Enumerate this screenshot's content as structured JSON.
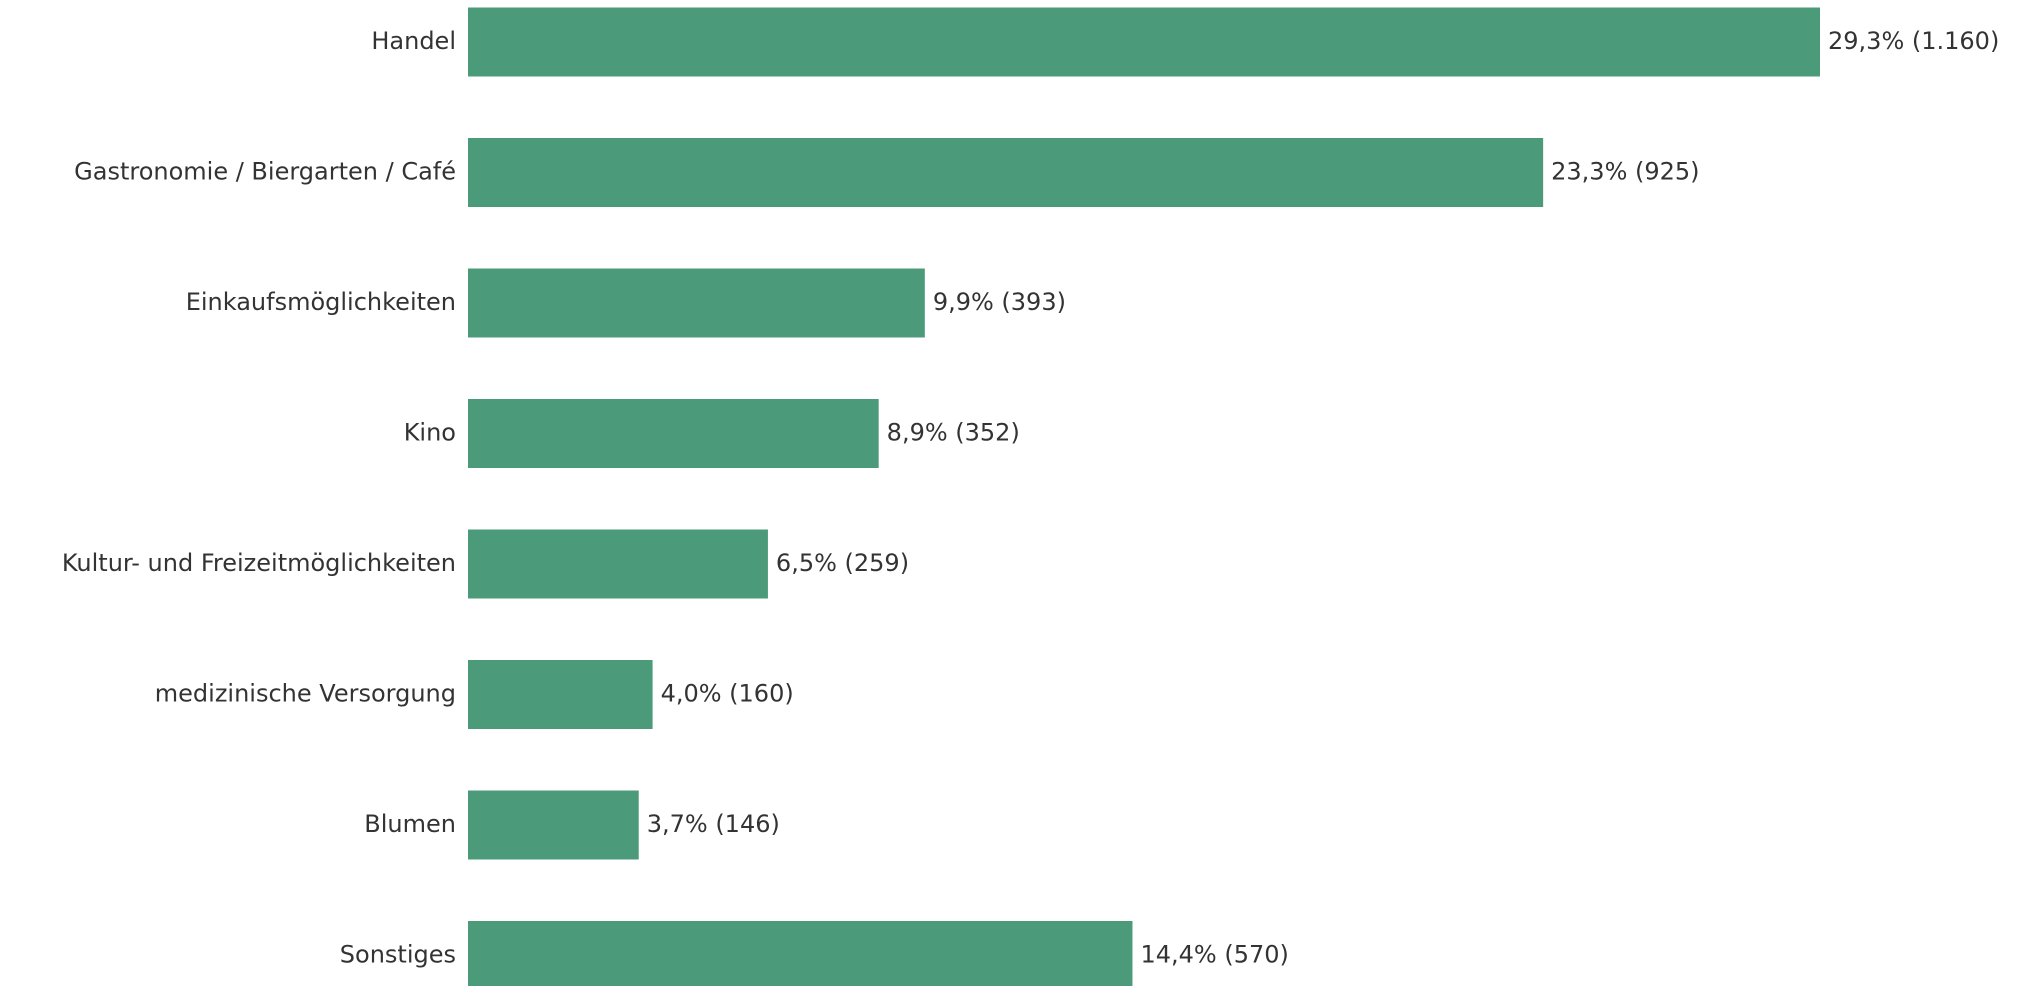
{
  "chart_data": {
    "type": "bar",
    "orientation": "horizontal",
    "categories": [
      "Handel",
      "Gastronomie / Biergarten / Café",
      "Einkaufsmöglichkeiten",
      "Kino",
      "Kultur- und Freizeitmöglichkeiten",
      "medizinische Versorgung",
      "Blumen",
      "Sonstiges"
    ],
    "values": [
      29.3,
      23.3,
      9.9,
      8.9,
      6.5,
      4.0,
      3.7,
      14.4
    ],
    "value_labels": [
      "29,3% (1.160)",
      "23,3% (925)",
      "9,9% (393)",
      "8,9% (352)",
      "6,5% (259)",
      "4,0% (160)",
      "3,7% (146)",
      "14,4% (570)"
    ],
    "color": "#4b9a7a"
  }
}
